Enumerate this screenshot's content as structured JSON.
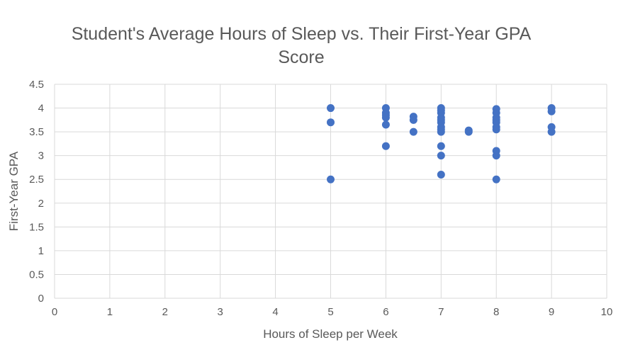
{
  "chart_data": {
    "type": "scatter",
    "title_lines": [
      "Student's Average Hours of Sleep vs. Their First-Year GPA",
      "Score"
    ],
    "xlabel": "Hours of Sleep per Week",
    "ylabel": "First-Year GPA",
    "xlim": [
      0,
      10
    ],
    "ylim": [
      0,
      4.5
    ],
    "x_ticks": [
      "0",
      "1",
      "2",
      "3",
      "4",
      "5",
      "6",
      "7",
      "8",
      "9",
      "10"
    ],
    "y_ticks": [
      "0",
      "0.5",
      "1",
      "1.5",
      "2",
      "2.5",
      "3",
      "3.5",
      "4",
      "4.5"
    ],
    "grid": true,
    "legend": "none",
    "marker_color": "#4472C4",
    "points": [
      {
        "x": 5,
        "y": 4.0
      },
      {
        "x": 5,
        "y": 3.7
      },
      {
        "x": 5,
        "y": 2.5
      },
      {
        "x": 6,
        "y": 4.0
      },
      {
        "x": 6,
        "y": 3.9
      },
      {
        "x": 6,
        "y": 3.85
      },
      {
        "x": 6,
        "y": 3.8
      },
      {
        "x": 6,
        "y": 3.65
      },
      {
        "x": 6,
        "y": 3.2
      },
      {
        "x": 6.5,
        "y": 3.82
      },
      {
        "x": 6.5,
        "y": 3.75
      },
      {
        "x": 6.5,
        "y": 3.5
      },
      {
        "x": 7,
        "y": 4.0
      },
      {
        "x": 7,
        "y": 3.95
      },
      {
        "x": 7,
        "y": 3.9
      },
      {
        "x": 7,
        "y": 3.8
      },
      {
        "x": 7,
        "y": 3.75
      },
      {
        "x": 7,
        "y": 3.7
      },
      {
        "x": 7,
        "y": 3.6
      },
      {
        "x": 7,
        "y": 3.55
      },
      {
        "x": 7,
        "y": 3.5
      },
      {
        "x": 7,
        "y": 3.2
      },
      {
        "x": 7,
        "y": 3.0
      },
      {
        "x": 7,
        "y": 2.6
      },
      {
        "x": 7.5,
        "y": 3.53
      },
      {
        "x": 7.5,
        "y": 3.5
      },
      {
        "x": 8,
        "y": 3.98
      },
      {
        "x": 8,
        "y": 3.9
      },
      {
        "x": 8,
        "y": 3.8
      },
      {
        "x": 8,
        "y": 3.75
      },
      {
        "x": 8,
        "y": 3.7
      },
      {
        "x": 8,
        "y": 3.6
      },
      {
        "x": 8,
        "y": 3.55
      },
      {
        "x": 8,
        "y": 3.1
      },
      {
        "x": 8,
        "y": 3.0
      },
      {
        "x": 8,
        "y": 2.5
      },
      {
        "x": 9,
        "y": 4.0
      },
      {
        "x": 9,
        "y": 3.93
      },
      {
        "x": 9,
        "y": 3.6
      },
      {
        "x": 9,
        "y": 3.5
      }
    ]
  }
}
